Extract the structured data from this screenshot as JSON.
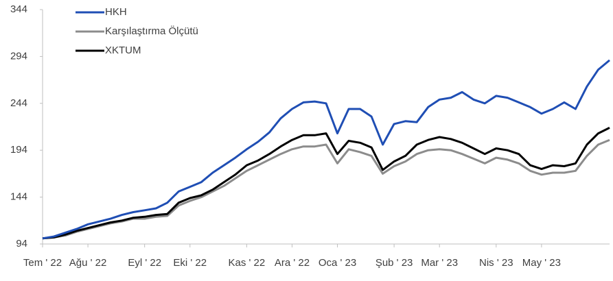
{
  "chart_data": {
    "type": "line",
    "categories": [
      "Tem ' 22",
      null,
      null,
      null,
      "Ağu ' 22",
      null,
      null,
      null,
      null,
      "Eyl ' 22",
      null,
      null,
      null,
      "Eki ' 22",
      null,
      null,
      null,
      null,
      "Kas ' 22",
      null,
      null,
      null,
      "Ara ' 22",
      null,
      null,
      null,
      "Oca ' 23",
      null,
      null,
      null,
      null,
      "Şub ' 23",
      null,
      null,
      null,
      "Mar ' 23",
      null,
      null,
      null,
      null,
      "Nis ' 23",
      null,
      null,
      null,
      "May ' 23",
      null,
      null,
      null,
      null,
      null,
      null
    ],
    "series": [
      {
        "name": "HKH",
        "color": "#1f4eb4",
        "values": [
          100,
          102,
          106,
          110,
          115,
          118,
          121,
          125,
          128,
          130,
          132,
          138,
          150,
          155,
          160,
          170,
          178,
          186,
          195,
          203,
          213,
          228,
          238,
          245,
          246,
          244,
          212,
          238,
          238,
          230,
          200,
          222,
          225,
          224,
          240,
          248,
          250,
          256,
          248,
          244,
          252,
          250,
          245,
          240,
          233,
          238,
          245,
          238,
          262,
          280,
          290
        ]
      },
      {
        "name": "Karşılaştırma Ölçütü",
        "color": "#8c8c8c",
        "values": [
          100,
          101,
          103,
          107,
          110,
          113,
          116,
          118,
          121,
          121,
          123,
          124,
          135,
          140,
          144,
          150,
          156,
          164,
          172,
          178,
          184,
          190,
          195,
          198,
          198,
          200,
          180,
          195,
          192,
          188,
          169,
          177,
          182,
          190,
          194,
          195,
          194,
          190,
          185,
          180,
          186,
          184,
          180,
          172,
          168,
          170,
          170,
          172,
          188,
          200,
          205
        ]
      },
      {
        "name": "XKTUM",
        "color": "#000000",
        "values": [
          100,
          101,
          104,
          108,
          111,
          114,
          117,
          119,
          122,
          123,
          125,
          126,
          138,
          143,
          146,
          152,
          160,
          168,
          178,
          183,
          190,
          198,
          205,
          210,
          210,
          212,
          190,
          204,
          202,
          197,
          173,
          182,
          188,
          200,
          205,
          208,
          206,
          202,
          196,
          190,
          196,
          194,
          190,
          178,
          174,
          178,
          177,
          180,
          200,
          212,
          218
        ]
      }
    ],
    "ylim": [
      94,
      344
    ],
    "yticks": [
      94,
      144,
      194,
      244,
      294,
      344
    ],
    "legend": "upper left"
  }
}
